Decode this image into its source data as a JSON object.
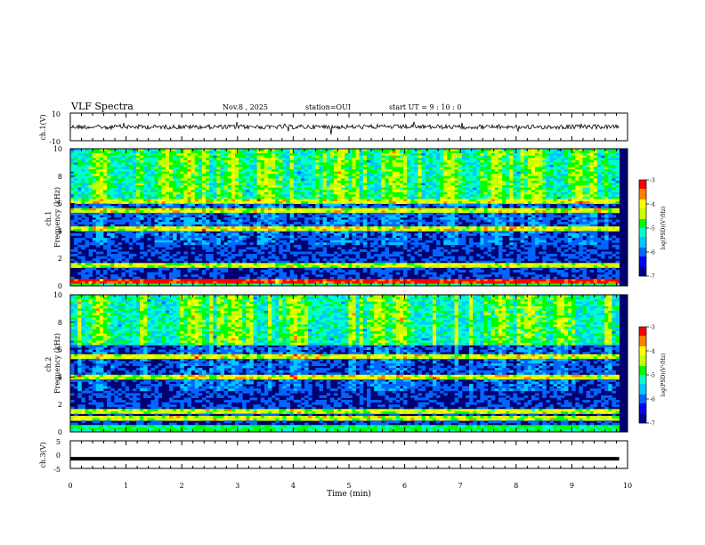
{
  "header": {
    "title": "VLF Spectra",
    "date": "Nov.8  , 2025",
    "station": "station=OUI",
    "start": "start  UT =   9 : 10 : 0"
  },
  "colors": {
    "cmap": [
      "#00008c",
      "#0000ff",
      "#0064ff",
      "#00c8ff",
      "#00ffc8",
      "#00ff00",
      "#c8ff00",
      "#ffff00",
      "#ff8000",
      "#ff0000",
      "#ffffff"
    ]
  },
  "chart_data": [
    {
      "type": "line",
      "name": "ch1-waveform",
      "ylabel": "ch.1(V)",
      "ylim": [
        -10,
        10
      ],
      "ytick_labels": [
        "10",
        "-10"
      ],
      "x_range_min": [
        0,
        9.85
      ],
      "baseline": 0,
      "noise_amplitude": 1
    },
    {
      "type": "heatmap",
      "name": "ch1-spectrogram",
      "ylabel": "ch.1\nFrequency (kHz)",
      "ylim": [
        0,
        10
      ],
      "yticks": [
        0,
        2,
        4,
        6,
        8,
        10
      ],
      "colorbar": {
        "label": "log(PSD)(V²/Hz)",
        "range": [
          -7,
          -3
        ],
        "ticks": [
          "-3",
          "-4",
          "-5",
          "-6",
          "-7"
        ]
      },
      "emission_bands_khz": [
        0.3,
        1.5,
        4.2,
        5.5,
        6.2
      ],
      "bursts_min": [
        0.5,
        1.7,
        2.1,
        2.9,
        3.5,
        4.8,
        5.8,
        6.8,
        7.6,
        8.3,
        9.1
      ]
    },
    {
      "type": "heatmap",
      "name": "ch2-spectrogram",
      "ylabel": "ch.2\nFrequency (kHz)",
      "ylim": [
        0,
        10
      ],
      "yticks": [
        0,
        2,
        4,
        6,
        8,
        10
      ],
      "colorbar": {
        "label": "log(PSD)(V²/Hz)",
        "range": [
          -7,
          -3
        ],
        "ticks": [
          "-3",
          "-4",
          "-5",
          "-6",
          "-7"
        ]
      },
      "emission_bands_khz": [
        1.0,
        1.5,
        4.0,
        5.5
      ],
      "bursts_min": [
        0.5,
        2.2,
        2.9,
        4.0,
        5.5,
        5.9,
        7.7,
        8.2,
        8.8
      ]
    },
    {
      "type": "line",
      "name": "ch3-waveform",
      "ylabel": "ch.3(V)",
      "ylim": [
        -5,
        5
      ],
      "ytick_labels": [
        "5",
        "0",
        "-5"
      ],
      "x_range_min": [
        0,
        9.85
      ],
      "baseline": -1.5
    }
  ],
  "xaxis": {
    "label": "Time (min)",
    "ticks": [
      "0",
      "1",
      "2",
      "3",
      "4",
      "5",
      "6",
      "7",
      "8",
      "9",
      "10"
    ]
  }
}
